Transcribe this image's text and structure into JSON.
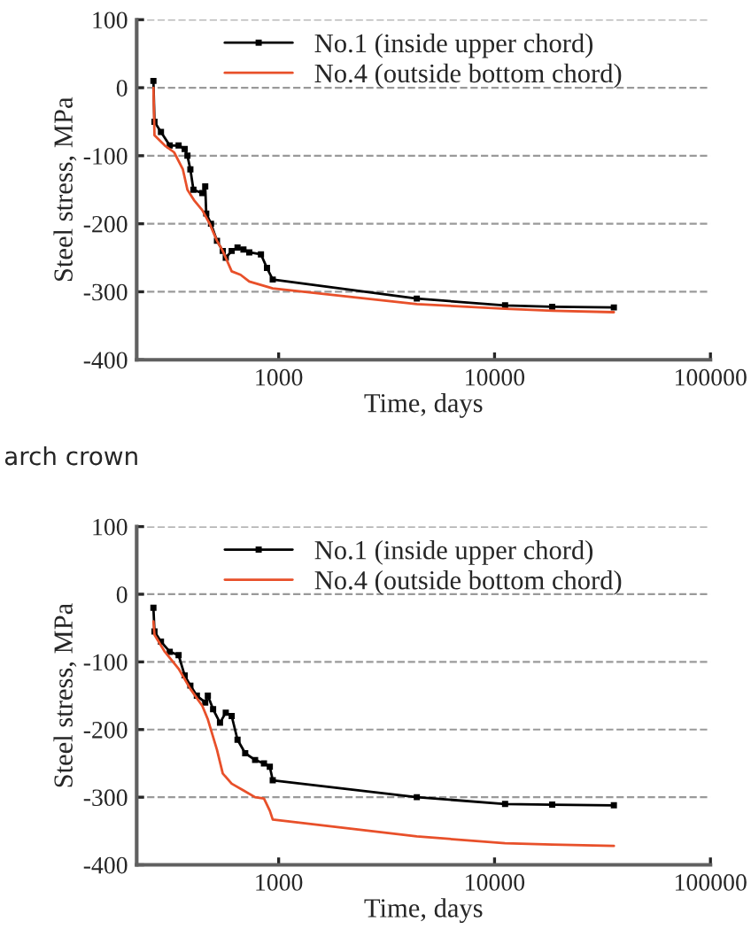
{
  "chart_data": [
    {
      "type": "line",
      "xlabel": "Time, days",
      "ylabel": "Steel stress, MPa",
      "log": "x",
      "xlim": [
        220,
        100000
      ],
      "xticks": [
        1000,
        10000,
        100000
      ],
      "ylim": [
        -400,
        100
      ],
      "yticks": [
        -400,
        -300,
        -200,
        -100,
        0,
        100
      ],
      "grid": "y",
      "legend": "top",
      "line_style": "solid",
      "annotations": [
        "arch crown"
      ],
      "series": [
        {
          "name": "No.1 (inside upper chord)",
          "color": "#000000",
          "marker": "square",
          "x": [
            263,
            266,
            285,
            313,
            344,
            367,
            378,
            390,
            403,
            443,
            457,
            462,
            486,
            518,
            551,
            569,
            606,
            645,
            687,
            731,
            828,
            883,
            939,
            4365,
            11190,
            18500,
            35700
          ],
          "values": [
            10,
            -50,
            -65,
            -85,
            -85,
            -90,
            -100,
            -120,
            -150,
            -155,
            -145,
            -185,
            -200,
            -225,
            -240,
            -250,
            -240,
            -235,
            -238,
            -242,
            -245,
            -265,
            -282,
            -310,
            -320,
            -322,
            -323
          ]
        },
        {
          "name": "No.4 (outside bottom chord)",
          "color": "#e8502a",
          "marker": "none",
          "x": [
            263,
            266,
            297,
            328,
            360,
            378,
            405,
            443,
            479,
            518,
            551,
            606,
            666,
            731,
            939,
            4365,
            11190,
            18500,
            35700
          ],
          "values": [
            0,
            -70,
            -85,
            -95,
            -120,
            -150,
            -165,
            -180,
            -200,
            -225,
            -240,
            -270,
            -275,
            -285,
            -295,
            -318,
            -325,
            -328,
            -330
          ]
        }
      ]
    },
    {
      "type": "line",
      "xlabel": "Time, days",
      "ylabel": "Steel stress, MPa",
      "log": "x",
      "xlim": [
        220,
        100000
      ],
      "xticks": [
        1000,
        10000,
        100000
      ],
      "ylim": [
        -400,
        100
      ],
      "yticks": [
        -400,
        -300,
        -200,
        -100,
        0,
        100
      ],
      "grid": "y",
      "legend": "top",
      "line_style": "solid",
      "series": [
        {
          "name": "No.1 (inside upper chord)",
          "color": "#000000",
          "marker": "square",
          "x": [
            263,
            266,
            285,
            313,
            344,
            367,
            390,
            418,
            457,
            470,
            497,
            535,
            569,
            606,
            645,
            700,
            778,
            855,
            910,
            939,
            4365,
            11190,
            18500,
            35700
          ],
          "values": [
            -20,
            -55,
            -70,
            -85,
            -90,
            -120,
            -135,
            -150,
            -160,
            -150,
            -170,
            -190,
            -175,
            -180,
            -215,
            -235,
            -245,
            -250,
            -255,
            -275,
            -300,
            -310,
            -311,
            -312
          ]
        },
        {
          "name": "No.4 (outside bottom chord)",
          "color": "#e8502a",
          "marker": "none",
          "x": [
            263,
            266,
            297,
            344,
            390,
            443,
            470,
            518,
            551,
            606,
            687,
            778,
            855,
            910,
            939,
            4365,
            11190,
            18500,
            35700
          ],
          "values": [
            -40,
            -60,
            -85,
            -110,
            -140,
            -165,
            -185,
            -230,
            -265,
            -280,
            -290,
            -300,
            -302,
            -320,
            -333,
            -358,
            -368,
            -370,
            -372
          ]
        }
      ]
    }
  ]
}
